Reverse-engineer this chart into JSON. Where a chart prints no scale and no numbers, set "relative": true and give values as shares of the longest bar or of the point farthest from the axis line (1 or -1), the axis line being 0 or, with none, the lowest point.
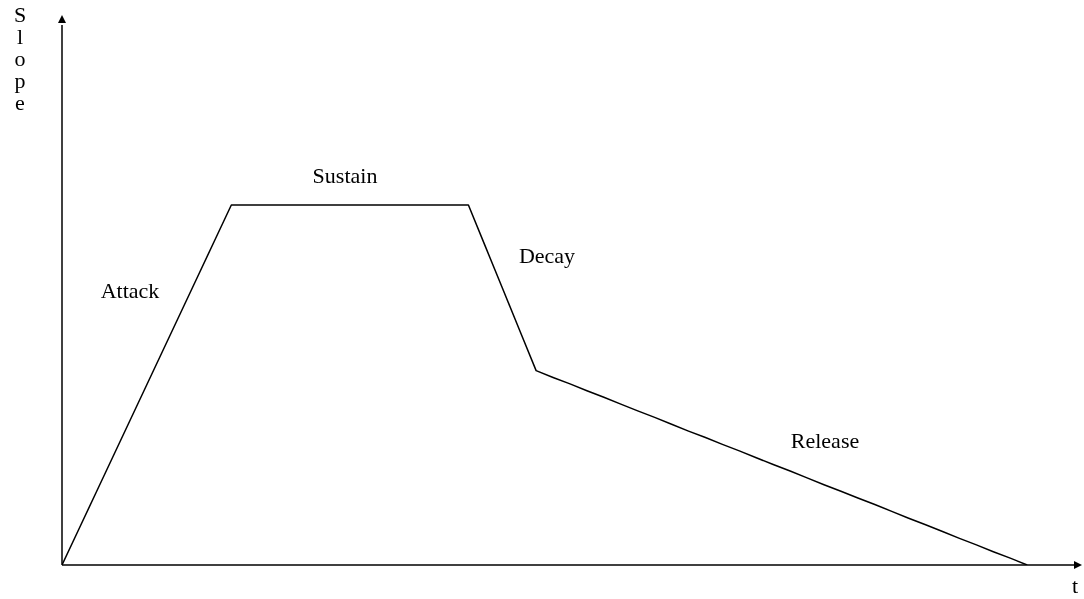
{
  "chart_data": {
    "type": "line",
    "relative": true,
    "ylabel": "Slope",
    "xlabel": "t",
    "categories": [
      null,
      null,
      null,
      null,
      null,
      null,
      null,
      null,
      null,
      null,
      null,
      null,
      null,
      null,
      null,
      null,
      null,
      null,
      null,
      null,
      null,
      null,
      null,
      null,
      null,
      null,
      null,
      null,
      null,
      null,
      null,
      null,
      null,
      null,
      null,
      null,
      null,
      null,
      null,
      null,
      null,
      null,
      null,
      null,
      null,
      null,
      null,
      null,
      null,
      null,
      null,
      null,
      null,
      null,
      null,
      null,
      null,
      null,
      null,
      null,
      null
    ],
    "series": [
      {
        "color": "#000000",
        "values": [
          0,
          0.1,
          0.2,
          0.3,
          0.4,
          0.5,
          0.6,
          0.7,
          0.8,
          0.9,
          1,
          1,
          1,
          1,
          1,
          1,
          1,
          1,
          1,
          1,
          1,
          1,
          1,
          1,
          1,
          0.885,
          0.77,
          0.655,
          0.54,
          0.521,
          0.503,
          0.484,
          0.466,
          0.447,
          0.428,
          0.41,
          0.391,
          0.372,
          0.354,
          0.335,
          0.317,
          0.298,
          0.279,
          0.261,
          0.242,
          0.223,
          0.205,
          0.186,
          0.168,
          0.149,
          0.13,
          0.112,
          0.093,
          0.074,
          0.056,
          0.037,
          0.019,
          0,
          null,
          null,
          null
        ]
      }
    ],
    "annotations": [
      "Attack",
      "Sustain",
      "Decay",
      "Release"
    ],
    "marker": "none",
    "line_style": "solid"
  }
}
